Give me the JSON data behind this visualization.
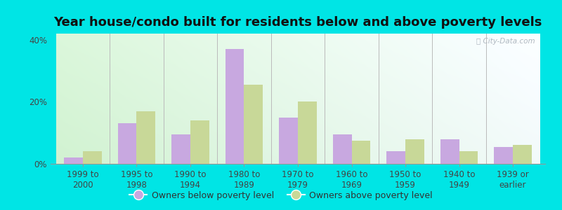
{
  "title": "Year house/condo built for residents below and above poverty levels",
  "categories": [
    "1999 to\n2000",
    "1995 to\n1998",
    "1990 to\n1994",
    "1980 to\n1989",
    "1970 to\n1979",
    "1960 to\n1969",
    "1950 to\n1959",
    "1940 to\n1949",
    "1939 or\nearlier"
  ],
  "below_poverty": [
    2.0,
    13.0,
    9.5,
    37.0,
    15.0,
    9.5,
    4.0,
    8.0,
    5.5
  ],
  "above_poverty": [
    4.0,
    17.0,
    14.0,
    25.5,
    20.0,
    7.5,
    8.0,
    4.0,
    6.0
  ],
  "below_color": "#c8a8e0",
  "above_color": "#c8d898",
  "ylim": [
    0,
    42
  ],
  "yticks": [
    0,
    20,
    40
  ],
  "ytick_labels": [
    "0%",
    "20%",
    "40%"
  ],
  "bar_width": 0.35,
  "outer_bg": "#00e5e5",
  "legend_below_label": "Owners below poverty level",
  "legend_above_label": "Owners above poverty level",
  "title_fontsize": 13,
  "tick_fontsize": 8.5,
  "legend_fontsize": 9
}
